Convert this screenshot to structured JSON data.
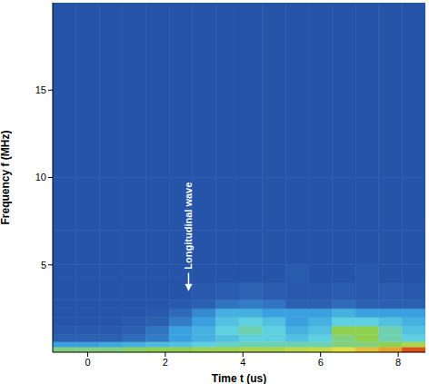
{
  "chart_data": {
    "type": "heatmap",
    "xlabel": "Time t (us)",
    "ylabel": "Frequency f (MHz)",
    "xlim": [
      -0.9,
      8.7
    ],
    "ylim": [
      0,
      20
    ],
    "xticks": [
      0,
      2,
      4,
      6,
      8
    ],
    "yticks": [
      5,
      10,
      15
    ],
    "zlim": [
      0,
      1
    ],
    "x_edges": [
      -0.9,
      -0.3,
      0.3,
      0.9,
      1.5,
      2.1,
      2.7,
      3.3,
      3.9,
      4.5,
      5.1,
      5.7,
      6.3,
      6.9,
      7.5,
      8.1,
      8.7
    ],
    "y_edges": [
      0,
      0.3,
      0.6,
      1,
      1.5,
      2,
      2.5,
      3,
      4,
      5,
      7,
      10,
      20
    ],
    "cells": [
      [
        0.55,
        0.55,
        0.55,
        0.58,
        0.6,
        0.6,
        0.62,
        0.62,
        0.65,
        0.65,
        0.68,
        0.7,
        0.75,
        0.8,
        0.85,
        0.95
      ],
      [
        0.3,
        0.3,
        0.32,
        0.35,
        0.38,
        0.4,
        0.45,
        0.48,
        0.5,
        0.5,
        0.5,
        0.5,
        0.55,
        0.55,
        0.6,
        0.65
      ],
      [
        0.15,
        0.15,
        0.15,
        0.18,
        0.22,
        0.3,
        0.35,
        0.4,
        0.45,
        0.45,
        0.4,
        0.45,
        0.55,
        0.6,
        0.5,
        0.45
      ],
      [
        0.12,
        0.12,
        0.12,
        0.15,
        0.2,
        0.3,
        0.35,
        0.45,
        0.5,
        0.45,
        0.35,
        0.4,
        0.6,
        0.6,
        0.5,
        0.4
      ],
      [
        0.1,
        0.1,
        0.1,
        0.12,
        0.15,
        0.22,
        0.3,
        0.4,
        0.45,
        0.4,
        0.3,
        0.35,
        0.45,
        0.45,
        0.4,
        0.35
      ],
      [
        0.1,
        0.1,
        0.1,
        0.1,
        0.12,
        0.18,
        0.25,
        0.35,
        0.35,
        0.3,
        0.3,
        0.3,
        0.35,
        0.3,
        0.3,
        0.3
      ],
      [
        0.1,
        0.1,
        0.1,
        0.1,
        0.1,
        0.12,
        0.15,
        0.2,
        0.22,
        0.2,
        0.15,
        0.15,
        0.18,
        0.15,
        0.15,
        0.15
      ],
      [
        0.1,
        0.1,
        0.1,
        0.1,
        0.1,
        0.1,
        0.12,
        0.14,
        0.16,
        0.14,
        0.12,
        0.12,
        0.14,
        0.12,
        0.14,
        0.12
      ],
      [
        0.1,
        0.1,
        0.1,
        0.1,
        0.1,
        0.1,
        0.1,
        0.1,
        0.1,
        0.1,
        0.13,
        0.1,
        0.1,
        0.12,
        0.1,
        0.1
      ],
      [
        0.1,
        0.1,
        0.1,
        0.1,
        0.1,
        0.1,
        0.1,
        0.1,
        0.1,
        0.1,
        0.1,
        0.1,
        0.1,
        0.1,
        0.1,
        0.1
      ],
      [
        0.1,
        0.1,
        0.1,
        0.1,
        0.1,
        0.1,
        0.1,
        0.1,
        0.1,
        0.1,
        0.1,
        0.1,
        0.1,
        0.1,
        0.1,
        0.1
      ],
      [
        0.1,
        0.1,
        0.1,
        0.1,
        0.1,
        0.1,
        0.1,
        0.1,
        0.1,
        0.1,
        0.1,
        0.1,
        0.1,
        0.1,
        0.1,
        0.1
      ]
    ],
    "annotations": [
      {
        "text": "Longitudinal wave",
        "x": 2.6,
        "y": 3.5
      }
    ]
  }
}
